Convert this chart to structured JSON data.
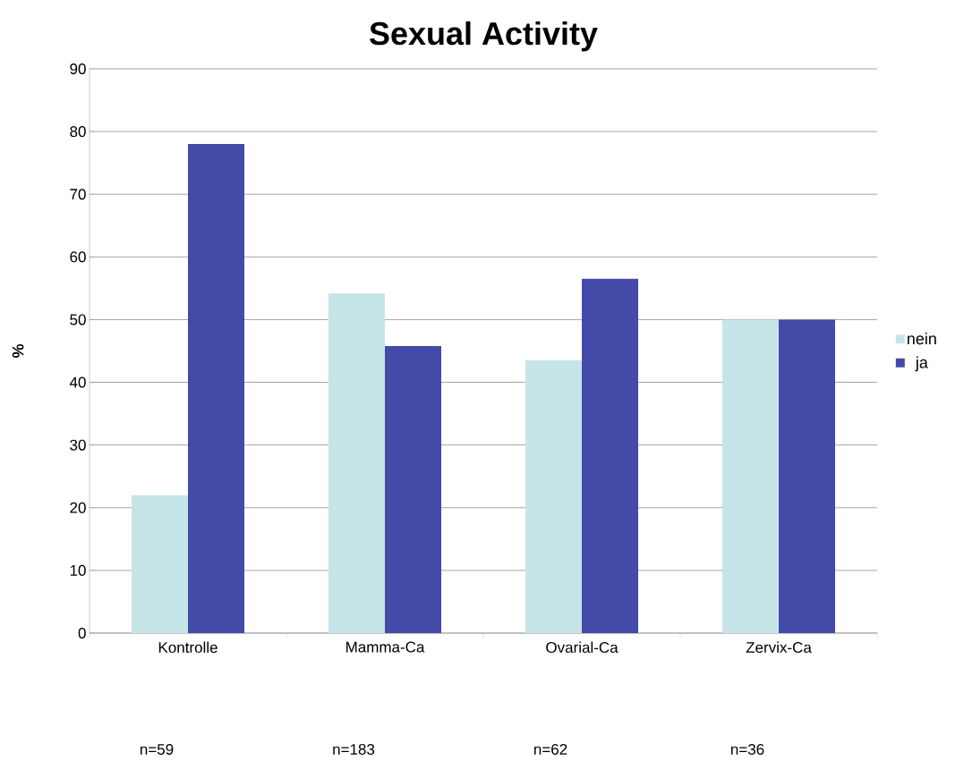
{
  "chart_data": {
    "type": "bar",
    "title": "Sexual Activity",
    "ylabel": "%",
    "categories": [
      "Kontrolle",
      "Mamma-Ca",
      "Ovarial-Ca",
      "Zervix-Ca"
    ],
    "series": [
      {
        "name": "nein",
        "color": "#c6e5e8",
        "values": [
          22,
          54.2,
          43.5,
          50
        ]
      },
      {
        "name": "ja",
        "color": "#434aa8",
        "values": [
          78,
          45.8,
          56.5,
          50
        ]
      }
    ],
    "ylim": [
      0,
      90
    ],
    "yticks": [
      0,
      10,
      20,
      30,
      40,
      50,
      60,
      70,
      80,
      90
    ],
    "grid": "y",
    "legend": "right",
    "annotations": [
      "n=59",
      "n=183",
      "n=62",
      "n=36"
    ]
  }
}
